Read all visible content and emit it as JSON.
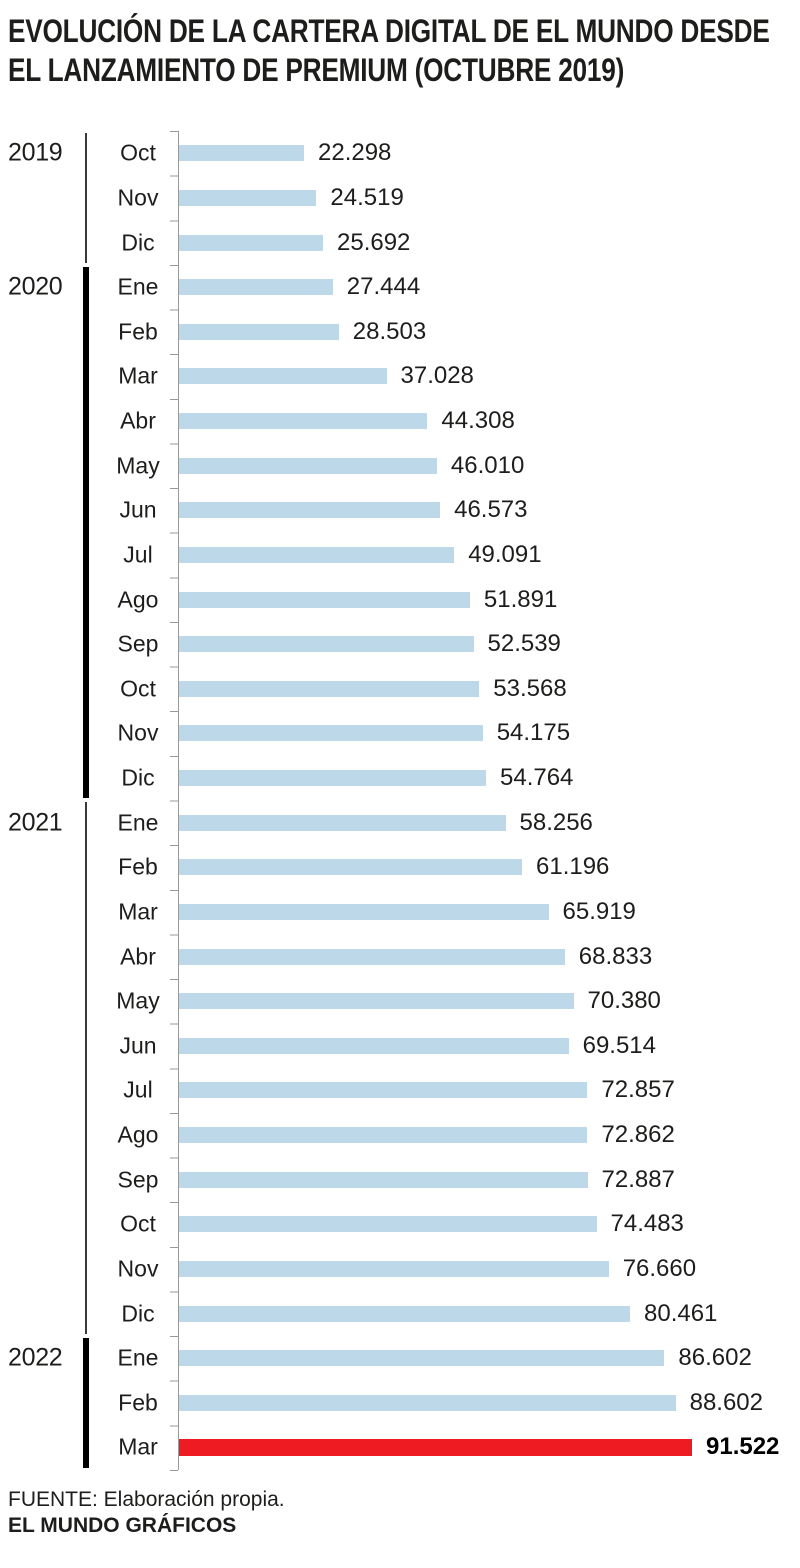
{
  "title": {
    "line1": "EVOLUCIÓN DE LA CARTERA DIGITAL DE EL MUNDO DESDE",
    "line2": "EL LANZAMIENTO DE PREMIUM (OCTUBRE 2019)"
  },
  "footer": {
    "source": "FUENTE: Elaboración propia.",
    "credit": "EL MUNDO GRÁFICOS"
  },
  "colors": {
    "bar": "#BDD8E9",
    "highlight": "#EE1B23",
    "text": "#1D1D1B",
    "axis": "#999999",
    "line_thin": "#3A3A3A",
    "line_thick": "#000000"
  },
  "chart_data": {
    "type": "bar",
    "orientation": "horizontal",
    "title": "EVOLUCIÓN DE LA CARTERA DIGITAL DE EL MUNDO DESDE EL LANZAMIENTO DE PREMIUM (OCTUBRE 2019)",
    "value_axis_max": 91522,
    "grid": false,
    "legend": false,
    "highlight_last": true,
    "groups": [
      {
        "year": "2019",
        "line": "thin",
        "months": [
          "Oct",
          "Nov",
          "Dic"
        ],
        "values": [
          22298,
          24519,
          25692
        ],
        "labels": [
          "22.298",
          "24.519",
          "25.692"
        ]
      },
      {
        "year": "2020",
        "line": "thick",
        "months": [
          "Ene",
          "Feb",
          "Mar",
          "Abr",
          "May",
          "Jun",
          "Jul",
          "Ago",
          "Sep",
          "Oct",
          "Nov",
          "Dic"
        ],
        "values": [
          27444,
          28503,
          37028,
          44308,
          46010,
          46573,
          49091,
          51891,
          52539,
          53568,
          54175,
          54764
        ],
        "labels": [
          "27.444",
          "28.503",
          "37.028",
          "44.308",
          "46.010",
          "46.573",
          "49.091",
          "51.891",
          "52.539",
          "53.568",
          "54.175",
          "54.764"
        ]
      },
      {
        "year": "2021",
        "line": "thin",
        "months": [
          "Ene",
          "Feb",
          "Mar",
          "Abr",
          "May",
          "Jun",
          "Jul",
          "Ago",
          "Sep",
          "Oct",
          "Nov",
          "Dic"
        ],
        "values": [
          58256,
          61196,
          65919,
          68833,
          70380,
          69514,
          72857,
          72862,
          72887,
          74483,
          76660,
          80461
        ],
        "labels": [
          "58.256",
          "61.196",
          "65.919",
          "68.833",
          "70.380",
          "69.514",
          "72.857",
          "72.862",
          "72.887",
          "74.483",
          "76.660",
          "80.461"
        ]
      },
      {
        "year": "2022",
        "line": "thick",
        "months": [
          "Ene",
          "Feb",
          "Mar"
        ],
        "values": [
          86602,
          88602,
          91522
        ],
        "labels": [
          "86.602",
          "88.602",
          "91.522"
        ]
      }
    ]
  }
}
